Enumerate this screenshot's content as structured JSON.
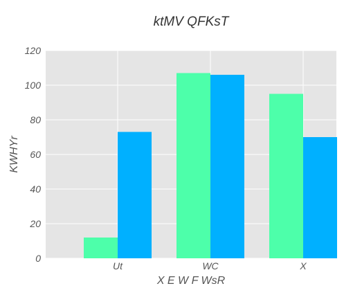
{
  "chart_data": {
    "type": "bar",
    "title": "ktMV QFKsT",
    "xlabel": "X E W F  WsR",
    "ylabel": "KWHYr",
    "categories": [
      "Ut",
      "WC",
      "X"
    ],
    "series": [
      {
        "values": [
          12,
          107,
          95
        ],
        "color": "#4dffaa"
      },
      {
        "values": [
          73,
          106,
          70
        ],
        "color": "#00b0ff"
      }
    ],
    "ylim": [
      0,
      120
    ],
    "yticks": [
      0,
      20,
      40,
      60,
      80,
      100,
      120
    ],
    "grid": true,
    "legend": "none",
    "background": "#e5e5e5",
    "grid_color": "#ffffff"
  }
}
